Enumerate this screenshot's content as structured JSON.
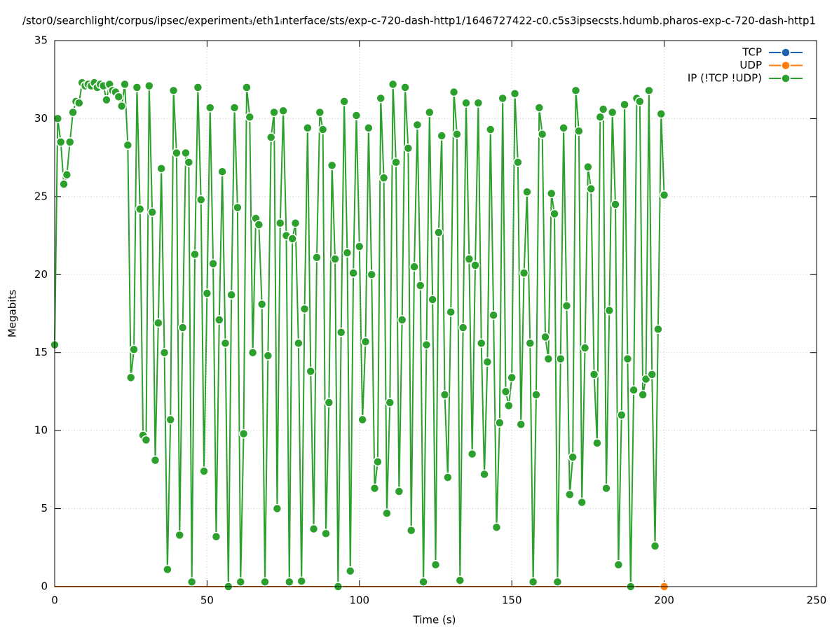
{
  "chart_data": {
    "type": "line",
    "title": "/stor0/searchlight/corpus/ipsec/experiment₃/eth1ᵢnterface/sts/exp-c-720-dash-http1/1646727422-c0.c5s3ipsecsts.hdumb.pharos-exp-c-720-dash-http1",
    "x_label": "Time (s)",
    "y_label": "Megabits",
    "xlim": [
      0,
      250
    ],
    "ylim": [
      0,
      35
    ],
    "xticks": [
      0,
      50,
      100,
      150,
      200,
      250
    ],
    "yticks": [
      0,
      5,
      10,
      15,
      20,
      25,
      30,
      35
    ],
    "grid": true,
    "legend": "top-right",
    "x": [
      0,
      1,
      2,
      3,
      4,
      5,
      6,
      7,
      8,
      9,
      10,
      11,
      12,
      13,
      14,
      15,
      16,
      17,
      18,
      19,
      20,
      21,
      22,
      23,
      24,
      25,
      26,
      27,
      28,
      29,
      30,
      31,
      32,
      33,
      34,
      35,
      36,
      37,
      38,
      39,
      40,
      41,
      42,
      43,
      44,
      45,
      46,
      47,
      48,
      49,
      50,
      51,
      52,
      53,
      54,
      55,
      56,
      57,
      58,
      59,
      60,
      61,
      62,
      63,
      64,
      65,
      66,
      67,
      68,
      69,
      70,
      71,
      72,
      73,
      74,
      75,
      76,
      77,
      78,
      79,
      80,
      81,
      82,
      83,
      84,
      85,
      86,
      87,
      88,
      89,
      90,
      91,
      92,
      93,
      94,
      95,
      96,
      97,
      98,
      99,
      100,
      101,
      102,
      103,
      104,
      105,
      106,
      107,
      108,
      109,
      110,
      111,
      112,
      113,
      114,
      115,
      116,
      117,
      118,
      119,
      120,
      121,
      122,
      123,
      124,
      125,
      126,
      127,
      128,
      129,
      130,
      131,
      132,
      133,
      134,
      135,
      136,
      137,
      138,
      139,
      140,
      141,
      142,
      143,
      144,
      145,
      146,
      147,
      148,
      149,
      150,
      151,
      152,
      153,
      154,
      155,
      156,
      157,
      158,
      159,
      160,
      161,
      162,
      163,
      164,
      165,
      166,
      167,
      168,
      169,
      170,
      171,
      172,
      173,
      174,
      175,
      176,
      177,
      178,
      179,
      180,
      181,
      182,
      183,
      184,
      185,
      186,
      187,
      188,
      189,
      190,
      191,
      192,
      193,
      194,
      195,
      196,
      197,
      198,
      199,
      200
    ],
    "series": [
      {
        "name": "TCP",
        "color": "#1f62b0",
        "values": [
          0,
          0,
          0,
          0,
          0,
          0,
          0,
          0,
          0,
          0,
          0,
          0,
          0,
          0,
          0,
          0,
          0,
          0,
          0,
          0,
          0,
          0,
          0,
          0,
          0,
          0,
          0,
          0,
          0,
          0,
          0,
          0,
          0,
          0,
          0,
          0,
          0,
          0,
          0,
          0,
          0,
          0,
          0,
          0,
          0,
          0,
          0,
          0,
          0,
          0,
          0,
          0,
          0,
          0,
          0,
          0,
          0,
          0,
          0,
          0,
          0,
          0,
          0,
          0,
          0,
          0,
          0,
          0,
          0,
          0,
          0,
          0,
          0,
          0,
          0,
          0,
          0,
          0,
          0,
          0,
          0,
          0,
          0,
          0,
          0,
          0,
          0,
          0,
          0,
          0,
          0,
          0,
          0,
          0,
          0,
          0,
          0,
          0,
          0,
          0,
          0,
          0,
          0,
          0,
          0,
          0,
          0,
          0,
          0,
          0,
          0,
          0,
          0,
          0,
          0,
          0,
          0,
          0,
          0,
          0,
          0,
          0,
          0,
          0,
          0,
          0,
          0,
          0,
          0,
          0,
          0,
          0,
          0,
          0,
          0,
          0,
          0,
          0,
          0,
          0,
          0,
          0,
          0,
          0,
          0,
          0,
          0,
          0,
          0,
          0,
          0,
          0,
          0,
          0,
          0,
          0,
          0,
          0,
          0,
          0,
          0,
          0,
          0,
          0,
          0,
          0,
          0,
          0,
          0,
          0,
          0,
          0,
          0,
          0,
          0,
          0,
          0,
          0,
          0,
          0,
          0,
          0,
          0,
          0,
          0,
          0,
          0,
          0,
          0,
          0,
          0,
          0,
          0,
          0,
          0,
          0,
          0,
          0,
          0,
          0,
          0
        ]
      },
      {
        "name": "UDP",
        "color": "#ff7f0e",
        "values": [
          0,
          0,
          0,
          0,
          0,
          0,
          0,
          0,
          0,
          0,
          0,
          0,
          0,
          0,
          0,
          0,
          0,
          0,
          0,
          0,
          0,
          0,
          0,
          0,
          0,
          0,
          0,
          0,
          0,
          0,
          0,
          0,
          0,
          0,
          0,
          0,
          0,
          0,
          0,
          0,
          0,
          0,
          0,
          0,
          0,
          0,
          0,
          0,
          0,
          0,
          0,
          0,
          0,
          0,
          0,
          0,
          0,
          0,
          0,
          0,
          0,
          0,
          0,
          0,
          0,
          0,
          0,
          0,
          0,
          0,
          0,
          0,
          0,
          0,
          0,
          0,
          0,
          0,
          0,
          0,
          0,
          0,
          0,
          0,
          0,
          0,
          0,
          0,
          0,
          0,
          0,
          0,
          0,
          0,
          0,
          0,
          0,
          0,
          0,
          0,
          0,
          0,
          0,
          0,
          0,
          0,
          0,
          0,
          0,
          0,
          0,
          0,
          0,
          0,
          0,
          0,
          0,
          0,
          0,
          0,
          0,
          0,
          0,
          0,
          0,
          0,
          0,
          0,
          0,
          0,
          0,
          0,
          0,
          0,
          0,
          0,
          0,
          0,
          0,
          0,
          0,
          0,
          0,
          0,
          0,
          0,
          0,
          0,
          0,
          0,
          0,
          0,
          0,
          0,
          0,
          0,
          0,
          0,
          0,
          0,
          0,
          0,
          0,
          0,
          0,
          0,
          0,
          0,
          0,
          0,
          0,
          0,
          0,
          0,
          0,
          0,
          0,
          0,
          0,
          0,
          0,
          0,
          0,
          0,
          0,
          0,
          0,
          0,
          0,
          0,
          0,
          0,
          0,
          0,
          0,
          0,
          0,
          0,
          0,
          0,
          0
        ]
      },
      {
        "name": "IP (!TCP  !UDP)",
        "color": "#2ca02c",
        "values": [
          15.5,
          30.0,
          28.5,
          25.8,
          26.4,
          28.5,
          30.4,
          31.1,
          31.0,
          32.3,
          32.1,
          32.2,
          32.1,
          32.3,
          32.0,
          32.2,
          32.1,
          31.2,
          32.2,
          31.8,
          31.7,
          31.4,
          30.8,
          32.2,
          28.3,
          13.4,
          15.2,
          32.0,
          24.2,
          9.7,
          9.4,
          32.1,
          24.0,
          8.1,
          16.9,
          26.8,
          15.0,
          1.1,
          10.7,
          31.8,
          27.8,
          3.3,
          16.6,
          27.8,
          27.2,
          0.3,
          21.3,
          32.0,
          24.8,
          7.4,
          18.8,
          30.7,
          20.7,
          3.2,
          17.1,
          26.6,
          15.6,
          0.0,
          18.7,
          30.7,
          24.3,
          0.3,
          9.8,
          32.0,
          30.1,
          15.0,
          23.6,
          23.2,
          18.1,
          0.3,
          14.8,
          28.8,
          30.4,
          5.0,
          23.3,
          30.5,
          22.5,
          0.3,
          22.3,
          23.3,
          15.6,
          0.35,
          17.8,
          29.4,
          13.8,
          3.7,
          21.1,
          30.4,
          29.3,
          3.4,
          11.8,
          27.0,
          21.0,
          0.0,
          16.3,
          31.1,
          21.4,
          1.0,
          20.1,
          30.2,
          21.8,
          10.7,
          15.7,
          29.4,
          20.0,
          6.3,
          8.0,
          31.3,
          26.2,
          4.7,
          11.8,
          32.2,
          27.2,
          6.1,
          17.1,
          32.0,
          28.1,
          3.6,
          20.5,
          29.6,
          19.3,
          0.3,
          15.5,
          30.4,
          18.4,
          1.4,
          22.7,
          28.9,
          12.3,
          7.0,
          17.6,
          31.7,
          29.0,
          0.4,
          16.6,
          31.0,
          21.0,
          8.5,
          20.6,
          31.0,
          15.6,
          7.2,
          14.4,
          29.3,
          17.4,
          3.8,
          10.5,
          31.3,
          12.5,
          11.6,
          13.4,
          31.6,
          27.2,
          10.4,
          20.1,
          25.3,
          15.6,
          0.3,
          12.3,
          30.7,
          29.0,
          16.0,
          14.6,
          25.2,
          23.9,
          0.3,
          14.6,
          29.4,
          18.0,
          5.9,
          8.3,
          31.8,
          29.2,
          5.4,
          15.3,
          26.9,
          25.5,
          13.6,
          9.2,
          30.1,
          30.6,
          6.3,
          17.7,
          30.4,
          24.5,
          1.4,
          11.0,
          30.9,
          14.6,
          0.0,
          12.6,
          31.3,
          31.1,
          12.3,
          13.3,
          31.8,
          13.6,
          2.6,
          16.5,
          30.3,
          25.1
        ]
      }
    ]
  }
}
